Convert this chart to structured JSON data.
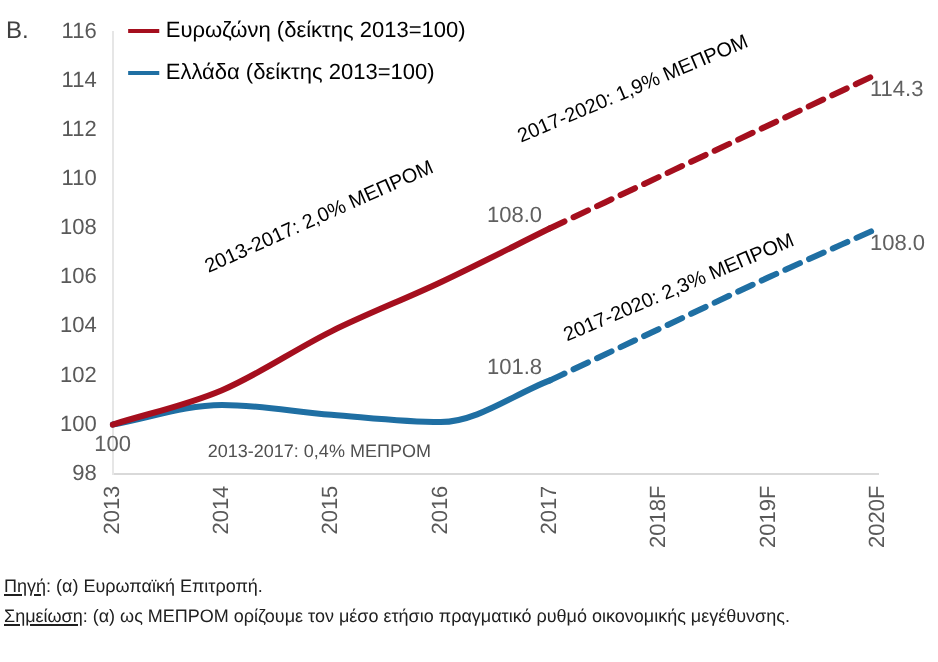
{
  "chart_data": {
    "type": "line",
    "title": "B.",
    "categories": [
      "2013",
      "2014",
      "2015",
      "2016",
      "2017",
      "2018F",
      "2019F",
      "2020F"
    ],
    "ylim": [
      98,
      116
    ],
    "yticks": [
      98,
      100,
      102,
      104,
      106,
      108,
      110,
      112,
      114,
      116
    ],
    "grid": false,
    "legend": "top left",
    "marker": "none",
    "series": [
      {
        "name": "Ευρωζώνη (δείκτης 2013=100)",
        "color": "#a50f1e",
        "line_style": "solid",
        "values": [
          100,
          101.4,
          103.8,
          105.8,
          108.0,
          null,
          null,
          null
        ],
        "value_labels": [
          null,
          null,
          null,
          null,
          "108.0",
          null,
          null,
          null
        ]
      },
      {
        "name": "Ελλάδα (δείκτης 2013=100)",
        "color": "#1f6fa3",
        "line_style": "solid",
        "values": [
          100,
          100.8,
          100.4,
          100.1,
          101.8,
          null,
          null,
          null
        ],
        "value_labels": [
          "100",
          null,
          null,
          null,
          "101.8",
          null,
          null,
          null
        ]
      },
      {
        "color": "#a50f1e",
        "line_style": "dashed",
        "values": [
          null,
          null,
          null,
          null,
          108.0,
          110.1,
          112.2,
          114.3
        ],
        "value_labels": [
          null,
          null,
          null,
          null,
          null,
          null,
          null,
          "114.3"
        ]
      },
      {
        "color": "#1f6fa3",
        "line_style": "dashed",
        "values": [
          null,
          null,
          null,
          null,
          101.8,
          103.9,
          106.0,
          108.0
        ],
        "value_labels": [
          null,
          null,
          null,
          null,
          null,
          null,
          null,
          "108.0"
        ]
      }
    ],
    "annotations": [
      "2013-2017: 2,0% ΜΕΠΡΟΜ",
      "2017-2020: 1,9% ΜΕΠΡΟΜ",
      "2017-2020: 2,3% ΜΕΠΡΟΜ",
      "2013-2017: 0,4% ΜΕΠΡΟΜ",
      "Πηγή: (α) Ευρωπαϊκή Επιτροπή.",
      "Σημείωση: (α) ως ΜΕΠΡΟΜ ορίζουμε τον μέσο ετήσιο πραγματικό ρυθμό οικονομικής μεγέθυνσης."
    ]
  }
}
